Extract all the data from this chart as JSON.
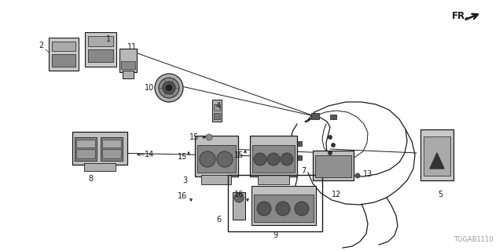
{
  "bg_color": "#ffffff",
  "line_color": "#1a1a1a",
  "watermark": "TGGAB1110",
  "fig_width": 6.4,
  "fig_height": 3.2,
  "dpi": 100
}
